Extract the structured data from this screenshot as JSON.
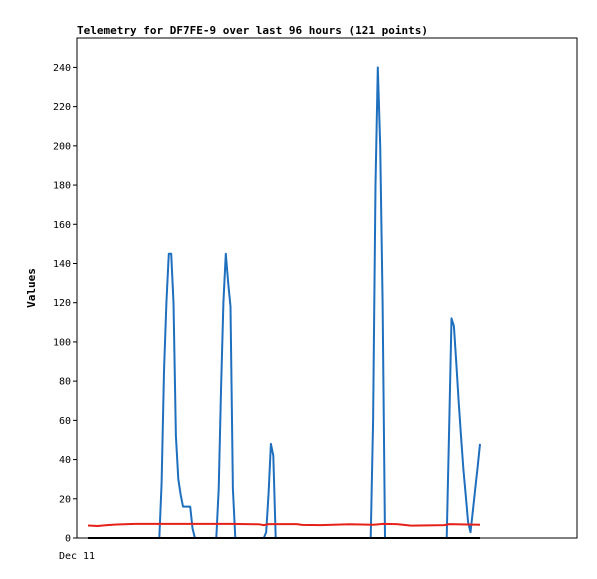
{
  "chart_data": {
    "type": "line",
    "title": "Telemetry for DF7FE-9 over last 96 hours (121 points)",
    "ylabel": "Values",
    "xlabel": "",
    "x_tick_labels": [
      "Dec 11"
    ],
    "ylim": [
      0,
      255
    ],
    "y_ticks": [
      0,
      20,
      40,
      60,
      80,
      100,
      120,
      140,
      160,
      180,
      200,
      220,
      240
    ],
    "x_range": [
      0,
      165
    ],
    "grid": false,
    "legend": "none",
    "series": [
      {
        "color": "#1f6fbf",
        "points": [
          [
            30,
            0
          ],
          [
            31,
            28
          ],
          [
            32,
            85
          ],
          [
            33,
            120
          ],
          [
            34,
            145
          ],
          [
            35,
            145
          ],
          [
            36,
            120
          ],
          [
            37,
            52
          ],
          [
            38,
            30
          ],
          [
            39,
            22
          ],
          [
            40,
            16
          ],
          [
            41,
            16
          ],
          [
            42,
            16
          ],
          [
            43,
            16
          ],
          [
            44,
            5
          ],
          [
            45,
            0
          ],
          [
            54,
            0
          ],
          [
            55,
            25
          ],
          [
            56,
            75
          ],
          [
            57,
            120
          ],
          [
            58,
            145
          ],
          [
            59,
            130
          ],
          [
            60,
            118
          ],
          [
            61,
            25
          ],
          [
            62,
            0
          ],
          [
            74,
            0
          ],
          [
            75,
            3
          ],
          [
            76,
            23
          ],
          [
            77,
            48
          ],
          [
            78,
            42
          ],
          [
            79,
            0
          ],
          [
            80,
            0
          ],
          [
            119,
            0
          ],
          [
            120,
            60
          ],
          [
            121,
            180
          ],
          [
            122,
            240
          ],
          [
            123,
            200
          ],
          [
            124,
            120
          ],
          [
            125,
            0
          ],
          [
            151,
            0
          ],
          [
            152,
            55
          ],
          [
            153,
            112
          ],
          [
            154,
            108
          ],
          [
            155,
            90
          ],
          [
            156,
            70
          ],
          [
            157,
            52
          ],
          [
            158,
            35
          ],
          [
            159,
            22
          ],
          [
            160,
            8
          ],
          [
            161,
            3
          ],
          [
            162,
            14
          ],
          [
            163,
            25
          ],
          [
            164,
            36
          ],
          [
            165,
            48
          ]
        ]
      },
      {
        "color": "#e6211a",
        "points": [
          [
            0,
            6.4
          ],
          [
            4,
            6.1
          ],
          [
            8,
            6.6
          ],
          [
            12,
            6.9
          ],
          [
            20,
            7.2
          ],
          [
            40,
            7.2
          ],
          [
            60,
            7.2
          ],
          [
            72,
            7.0
          ],
          [
            74,
            6.6
          ],
          [
            76,
            7.1
          ],
          [
            88,
            7.1
          ],
          [
            90,
            6.7
          ],
          [
            98,
            6.6
          ],
          [
            110,
            7.0
          ],
          [
            120,
            6.8
          ],
          [
            124,
            7.2
          ],
          [
            130,
            7.1
          ],
          [
            136,
            6.3
          ],
          [
            150,
            6.6
          ],
          [
            152,
            7.1
          ],
          [
            165,
            6.8
          ]
        ]
      },
      {
        "color": "#000000",
        "points": [
          [
            0,
            0
          ],
          [
            165,
            0
          ]
        ]
      }
    ]
  }
}
